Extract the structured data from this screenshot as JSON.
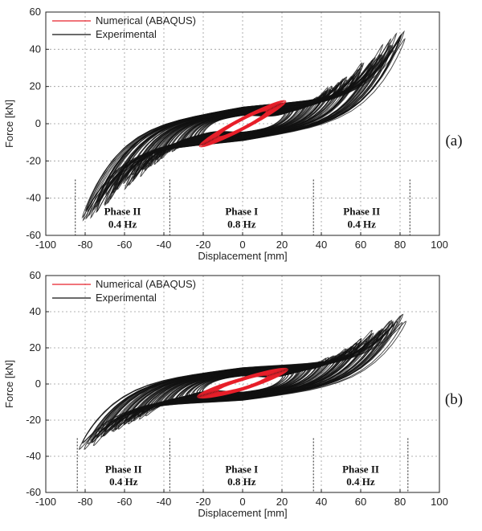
{
  "chart_data": [
    {
      "type": "line",
      "panel_label": "(a)",
      "xlabel": "Displacement [mm]",
      "ylabel": "Force [kN]",
      "xlim": [
        -100,
        100
      ],
      "ylim": [
        -60,
        60
      ],
      "xticks": [
        "-100",
        "-80",
        "-60",
        "-40",
        "-20",
        "0",
        "20",
        "40",
        "60",
        "80",
        "100"
      ],
      "yticks": [
        "60",
        "40",
        "20",
        "0",
        "-20",
        "-40",
        "-60"
      ],
      "grid": true,
      "legend_position": "top-left",
      "series": [
        {
          "name": "Numerical (ABAQUS)",
          "color": "#e8202a",
          "amplitude_x": 22,
          "amplitude_y": [
            -12,
            12
          ],
          "cycles": 20
        },
        {
          "name": "Experimental",
          "color": "#111111",
          "amplitude_x": [
            -84,
            85
          ],
          "amplitude_y": [
            -56,
            53
          ],
          "cycles": 90
        }
      ],
      "annotations": [
        {
          "label": "Phase II",
          "freq": "0.4 Hz",
          "x_range": [
            -85,
            -37
          ]
        },
        {
          "label": "Phase I",
          "freq": "0.8 Hz",
          "x_range": [
            -37,
            36
          ]
        },
        {
          "label": "Phase II",
          "freq": "0.4 Hz",
          "x_range": [
            36,
            85
          ]
        }
      ]
    },
    {
      "type": "line",
      "panel_label": "(b)",
      "xlabel": "Displacement [mm]",
      "ylabel": "Force [kN]",
      "xlim": [
        -100,
        100
      ],
      "ylim": [
        -60,
        60
      ],
      "xticks": [
        "-100",
        "-80",
        "-60",
        "-40",
        "-20",
        "0",
        "20",
        "40",
        "60",
        "80",
        "100"
      ],
      "yticks": [
        "60",
        "40",
        "20",
        "0",
        "-20",
        "-40",
        "-60"
      ],
      "grid": true,
      "legend_position": "top-left",
      "series": [
        {
          "name": "Numerical (ABAQUS)",
          "color": "#e8202a",
          "amplitude_x": 23,
          "amplitude_y": [
            -7,
            8
          ],
          "cycles": 20
        },
        {
          "name": "Experimental",
          "color": "#111111",
          "amplitude_x": [
            -84,
            84
          ],
          "amplitude_y": [
            -38,
            40
          ],
          "cycles": 90
        }
      ],
      "annotations": [
        {
          "label": "Phase II",
          "freq": "0.4 Hz",
          "x_range": [
            -84,
            -37
          ]
        },
        {
          "label": "Phase I",
          "freq": "0.8 Hz",
          "x_range": [
            -37,
            36
          ]
        },
        {
          "label": "Phase II",
          "freq": "0.4 Hz",
          "x_range": [
            36,
            84
          ]
        }
      ]
    }
  ]
}
